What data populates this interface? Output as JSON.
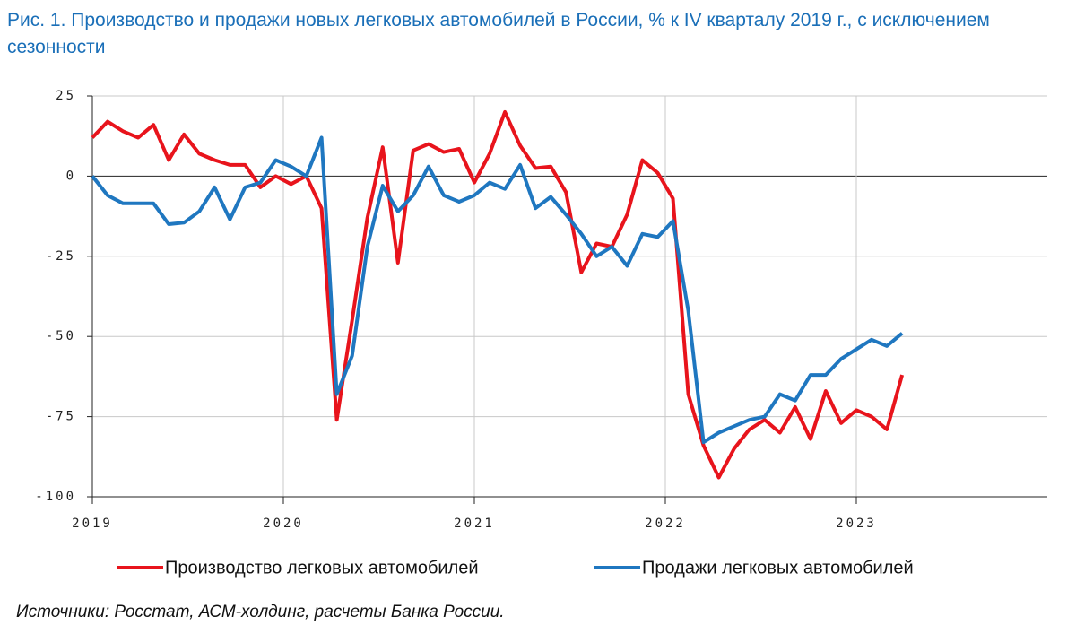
{
  "chart_data": {
    "type": "line",
    "title": "Рис. 1. Производство и продажи новых легковых автомобилей в России, % к IV кварталу 2019 г., с исключением сезонности",
    "source": "Источники: Росстат, АСМ-холдинг, расчеты Банка России.",
    "x": [
      2019.0,
      2019.08,
      2019.16,
      2019.24,
      2019.32,
      2019.4,
      2019.48,
      2019.56,
      2019.64,
      2019.72,
      2019.8,
      2019.88,
      2019.96,
      2020.04,
      2020.12,
      2020.2,
      2020.28,
      2020.36,
      2020.44,
      2020.52,
      2020.6,
      2020.68,
      2020.76,
      2020.84,
      2020.92,
      2021.0,
      2021.08,
      2021.16,
      2021.24,
      2021.32,
      2021.4,
      2021.48,
      2021.56,
      2021.64,
      2021.72,
      2021.8,
      2021.88,
      2021.96,
      2022.04,
      2022.12,
      2022.2,
      2022.28,
      2022.36,
      2022.44,
      2022.52,
      2022.6,
      2022.68,
      2022.76,
      2022.84,
      2022.92,
      2023.0,
      2023.08,
      2023.16,
      2023.24
    ],
    "series": [
      {
        "name": "Производство легковых автомобилей",
        "color": "#e8141c",
        "values": [
          12,
          17,
          14,
          12,
          16,
          5,
          13,
          7,
          5,
          3.5,
          3.5,
          -3.5,
          0,
          -2.5,
          0,
          -10,
          -76,
          -45,
          -13,
          9,
          -27,
          8,
          10,
          7.5,
          8.5,
          -2,
          7,
          20,
          9.5,
          2.5,
          3,
          -5,
          -30,
          -21,
          -22,
          -12,
          5,
          1,
          -7,
          -68,
          -84,
          -94,
          -85,
          -79,
          -76,
          -80,
          -72,
          -82,
          -67,
          -77,
          -73,
          -75,
          -79,
          -62
        ]
      },
      {
        "name": "Продажи легковых автомобилей",
        "color": "#1f77c0",
        "values": [
          0,
          -6,
          -8.5,
          -8.5,
          -8.5,
          -15,
          -14.5,
          -11,
          -3.5,
          -13.5,
          -3.5,
          -2,
          5,
          3,
          0,
          12,
          -68,
          -56,
          -22,
          -3,
          -11,
          -6,
          3,
          -6,
          -8,
          -6,
          -2,
          -4,
          3.5,
          -10,
          -6.5,
          -12,
          -18,
          -25,
          -22,
          -28,
          -18,
          -19,
          -14,
          -42,
          -83,
          -80,
          -78,
          -76,
          -75,
          -68,
          -70,
          -62,
          -62,
          -57,
          -54,
          -51,
          -53,
          -49
        ]
      }
    ],
    "xlim": [
      2019,
      2024
    ],
    "xticks": [
      2019,
      2020,
      2021,
      2022,
      2023
    ],
    "ylim": [
      -100,
      25
    ],
    "yticks": [
      -100,
      -75,
      -50,
      -25,
      0,
      25
    ],
    "grid": true
  }
}
